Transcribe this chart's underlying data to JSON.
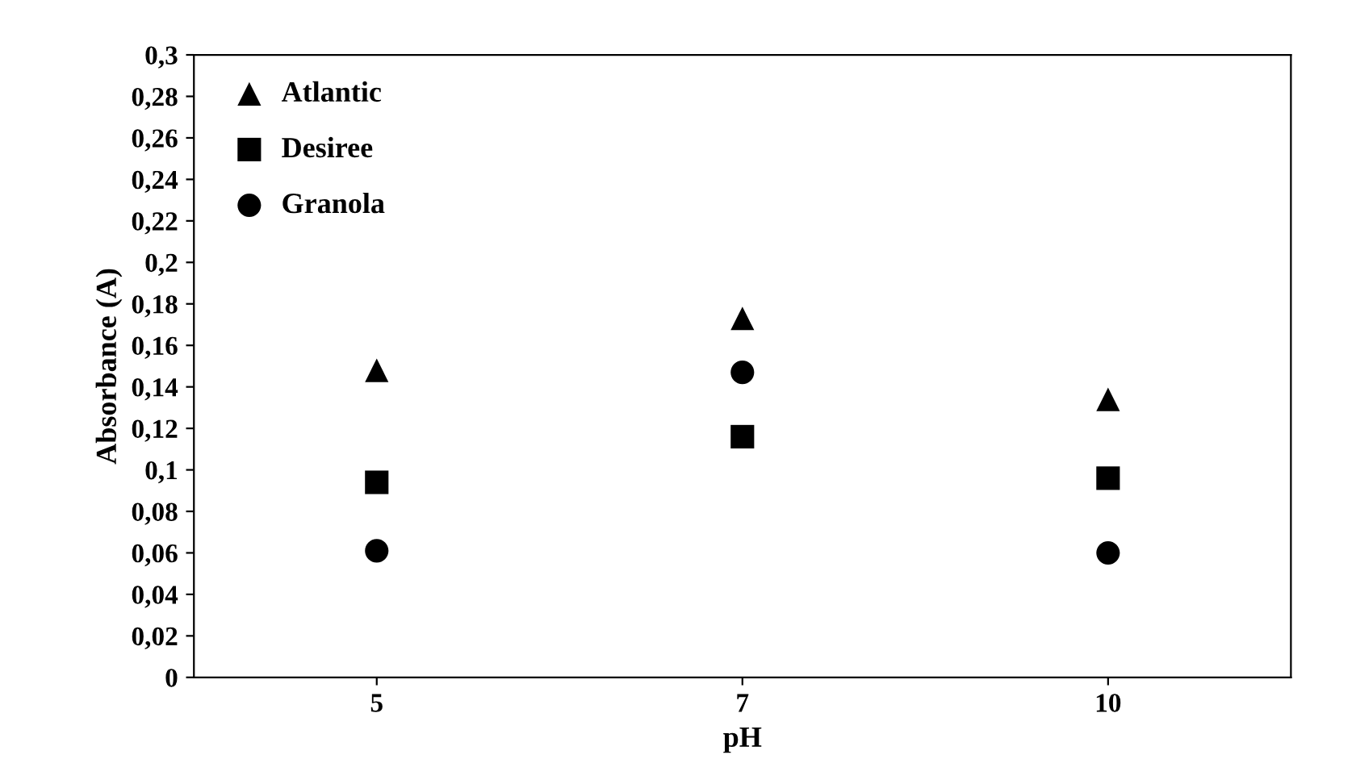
{
  "chart_data": {
    "type": "scatter",
    "xlabel": "pH",
    "ylabel": "Absorbance (A)",
    "categories": [
      "5",
      "7",
      "10"
    ],
    "series": [
      {
        "name": "Atlantic",
        "color": "#000000",
        "marker": "triangle",
        "values": [
          0.148,
          0.173,
          0.134
        ]
      },
      {
        "name": "Desiree",
        "color": "#000000",
        "marker": "square",
        "values": [
          0.094,
          0.116,
          0.096
        ]
      },
      {
        "name": "Granola",
        "color": "#000000",
        "marker": "circle",
        "values": [
          0.061,
          0.147,
          0.06
        ]
      }
    ],
    "ylim": [
      0,
      0.3
    ],
    "yticks": [
      0,
      {
        "value": 0.02,
        "label": "0,02"
      },
      {
        "value": 0.04,
        "label": "0,04"
      },
      {
        "value": 0.06,
        "label": "0,06"
      },
      {
        "value": 0.08,
        "label": "0,08"
      },
      {
        "value": 0.1,
        "label": "0,1"
      },
      {
        "value": 0.12,
        "label": "0,12"
      },
      {
        "value": 0.14,
        "label": "0,14"
      },
      {
        "value": 0.16,
        "label": "0,16"
      },
      {
        "value": 0.18,
        "label": "0,18"
      },
      {
        "value": 0.2,
        "label": "0,2"
      },
      {
        "value": 0.22,
        "label": "0,22"
      },
      {
        "value": 0.24,
        "label": "0,24"
      },
      {
        "value": 0.26,
        "label": "0,26"
      },
      {
        "value": 0.28,
        "label": "0,28"
      },
      {
        "value": 0.3,
        "label": "0,3"
      }
    ],
    "grid": false,
    "legend": "top left"
  }
}
